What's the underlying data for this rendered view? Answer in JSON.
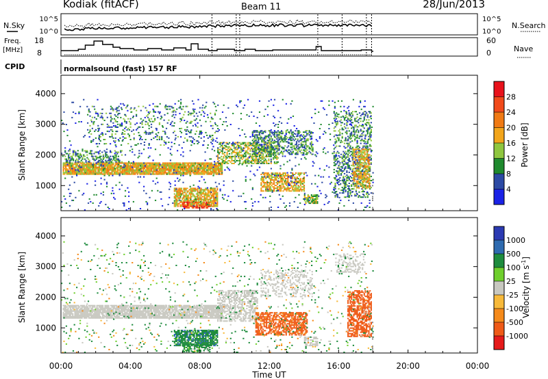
{
  "header": {
    "station": "Kodiak (fitACF)",
    "beam": "Beam 11",
    "date": "28/Jun/2013"
  },
  "labels": {
    "nsky": "N.Sky",
    "nsearch": "N.Search",
    "freq_line1": "Freq.",
    "freq_line2": "[MHz]",
    "nave": "Nave",
    "cpid": "CPID",
    "cpid_value": "normalsound (fast) 157 RF",
    "pow_tick_top": "10^5",
    "pow_tick_bottom": "10^0",
    "freq_tick_top": "18",
    "freq_tick_bottom": "8",
    "nave_tick_top": "60",
    "nave_tick_bottom": "0"
  },
  "colorbars": {
    "power": {
      "title": "Power [dB]",
      "ticks": [
        "28",
        "24",
        "20",
        "16",
        "12",
        "8",
        "4"
      ],
      "colors": [
        "#e8121b",
        "#f14a1a",
        "#f07a14",
        "#f2a51b",
        "#8fc63f",
        "#1f8a2e",
        "#2c4aa4",
        "#1a22e6"
      ]
    },
    "velocity": {
      "title": "Velocity [m s^-1]",
      "ticks": [
        "1000",
        "500",
        "100",
        "25",
        "-25",
        "-100",
        "-500",
        "-1000"
      ],
      "colors": [
        "#2b3ab2",
        "#2f6bb0",
        "#1e8c3e",
        "#6fcf2d",
        "#c8c8c0",
        "#f7b93a",
        "#f58a1a",
        "#ef5a17",
        "#e51a1a"
      ]
    }
  },
  "chart_data": [
    {
      "type": "heatmap",
      "name": "power",
      "xlabel": "Time UT",
      "ylabel": "Slant Range [km]",
      "xlim": [
        0,
        24
      ],
      "ylim": [
        180,
        4600
      ],
      "xticks": [
        "00:00",
        "04:00",
        "08:00",
        "12:00",
        "16:00",
        "20:00",
        "00:00"
      ],
      "yticks": [
        1000,
        2000,
        3000,
        4000
      ],
      "data_end_hour": 18.0,
      "regions": [
        {
          "t0": 0.1,
          "t1": 9.3,
          "r0": 1350,
          "r1": 1750,
          "level": 3,
          "density": 0.9
        },
        {
          "t0": 0.2,
          "t1": 3.5,
          "r0": 1750,
          "r1": 2150,
          "level": 1,
          "density": 0.4
        },
        {
          "t0": 1.5,
          "t1": 9.0,
          "r0": 2300,
          "r1": 3600,
          "level": 1,
          "density": 0.12
        },
        {
          "t0": 6.5,
          "t1": 9.0,
          "r0": 300,
          "r1": 900,
          "level": 3,
          "density": 0.75
        },
        {
          "t0": 7.0,
          "t1": 8.6,
          "r0": 250,
          "r1": 450,
          "level": 5,
          "density": 0.6
        },
        {
          "t0": 9.0,
          "t1": 12.5,
          "r0": 1700,
          "r1": 2400,
          "level": 2,
          "density": 0.5
        },
        {
          "t0": 11.0,
          "t1": 14.5,
          "r0": 2000,
          "r1": 2800,
          "level": 1,
          "density": 0.45
        },
        {
          "t0": 11.5,
          "t1": 14.0,
          "r0": 800,
          "r1": 1400,
          "level": 3,
          "density": 0.6
        },
        {
          "t0": 14.0,
          "t1": 14.8,
          "r0": 400,
          "r1": 700,
          "level": 2,
          "density": 0.7
        },
        {
          "t0": 15.7,
          "t1": 17.9,
          "r0": 600,
          "r1": 3400,
          "level": 1,
          "density": 0.35
        },
        {
          "t0": 16.8,
          "t1": 17.8,
          "r0": 900,
          "r1": 2200,
          "level": 3,
          "density": 0.55
        },
        {
          "t0": 0.0,
          "t1": 18.0,
          "r0": 180,
          "r1": 3800,
          "level": 0,
          "density": 0.04
        }
      ]
    },
    {
      "type": "heatmap",
      "name": "velocity",
      "xlabel": "Time UT",
      "ylabel": "Slant Range [km]",
      "xlim": [
        0,
        24
      ],
      "ylim": [
        180,
        4600
      ],
      "xticks": [
        "00:00",
        "04:00",
        "08:00",
        "12:00",
        "16:00",
        "20:00",
        "00:00"
      ],
      "yticks": [
        1000,
        2000,
        3000,
        4000
      ],
      "data_end_hour": 18.0,
      "regions": [
        {
          "t0": 0.1,
          "t1": 9.3,
          "r0": 1300,
          "r1": 1750,
          "vel": 0,
          "density": 0.85
        },
        {
          "t0": 9.0,
          "t1": 11.3,
          "r0": 1200,
          "r1": 2200,
          "vel": 0,
          "density": 0.55
        },
        {
          "t0": 6.5,
          "t1": 9.0,
          "r0": 400,
          "r1": 900,
          "vel": 200,
          "density": 0.8
        },
        {
          "t0": 7.0,
          "t1": 8.6,
          "r0": 200,
          "r1": 450,
          "vel": 150,
          "density": 0.6
        },
        {
          "t0": 11.2,
          "t1": 14.2,
          "r0": 750,
          "r1": 1500,
          "vel": -400,
          "density": 0.65
        },
        {
          "t0": 11.5,
          "t1": 14.5,
          "r0": 2000,
          "r1": 2900,
          "vel": 0,
          "density": 0.3
        },
        {
          "t0": 14.0,
          "t1": 14.8,
          "r0": 400,
          "r1": 700,
          "vel": 0,
          "density": 0.7
        },
        {
          "t0": 16.5,
          "t1": 17.9,
          "r0": 700,
          "r1": 2200,
          "vel": -600,
          "density": 0.6
        },
        {
          "t0": 15.8,
          "t1": 17.5,
          "r0": 2800,
          "r1": 3400,
          "vel": 0,
          "density": 0.35
        },
        {
          "t0": 0.0,
          "t1": 18.0,
          "r0": 180,
          "r1": 3800,
          "vel": 50,
          "density": 0.04
        }
      ]
    }
  ]
}
